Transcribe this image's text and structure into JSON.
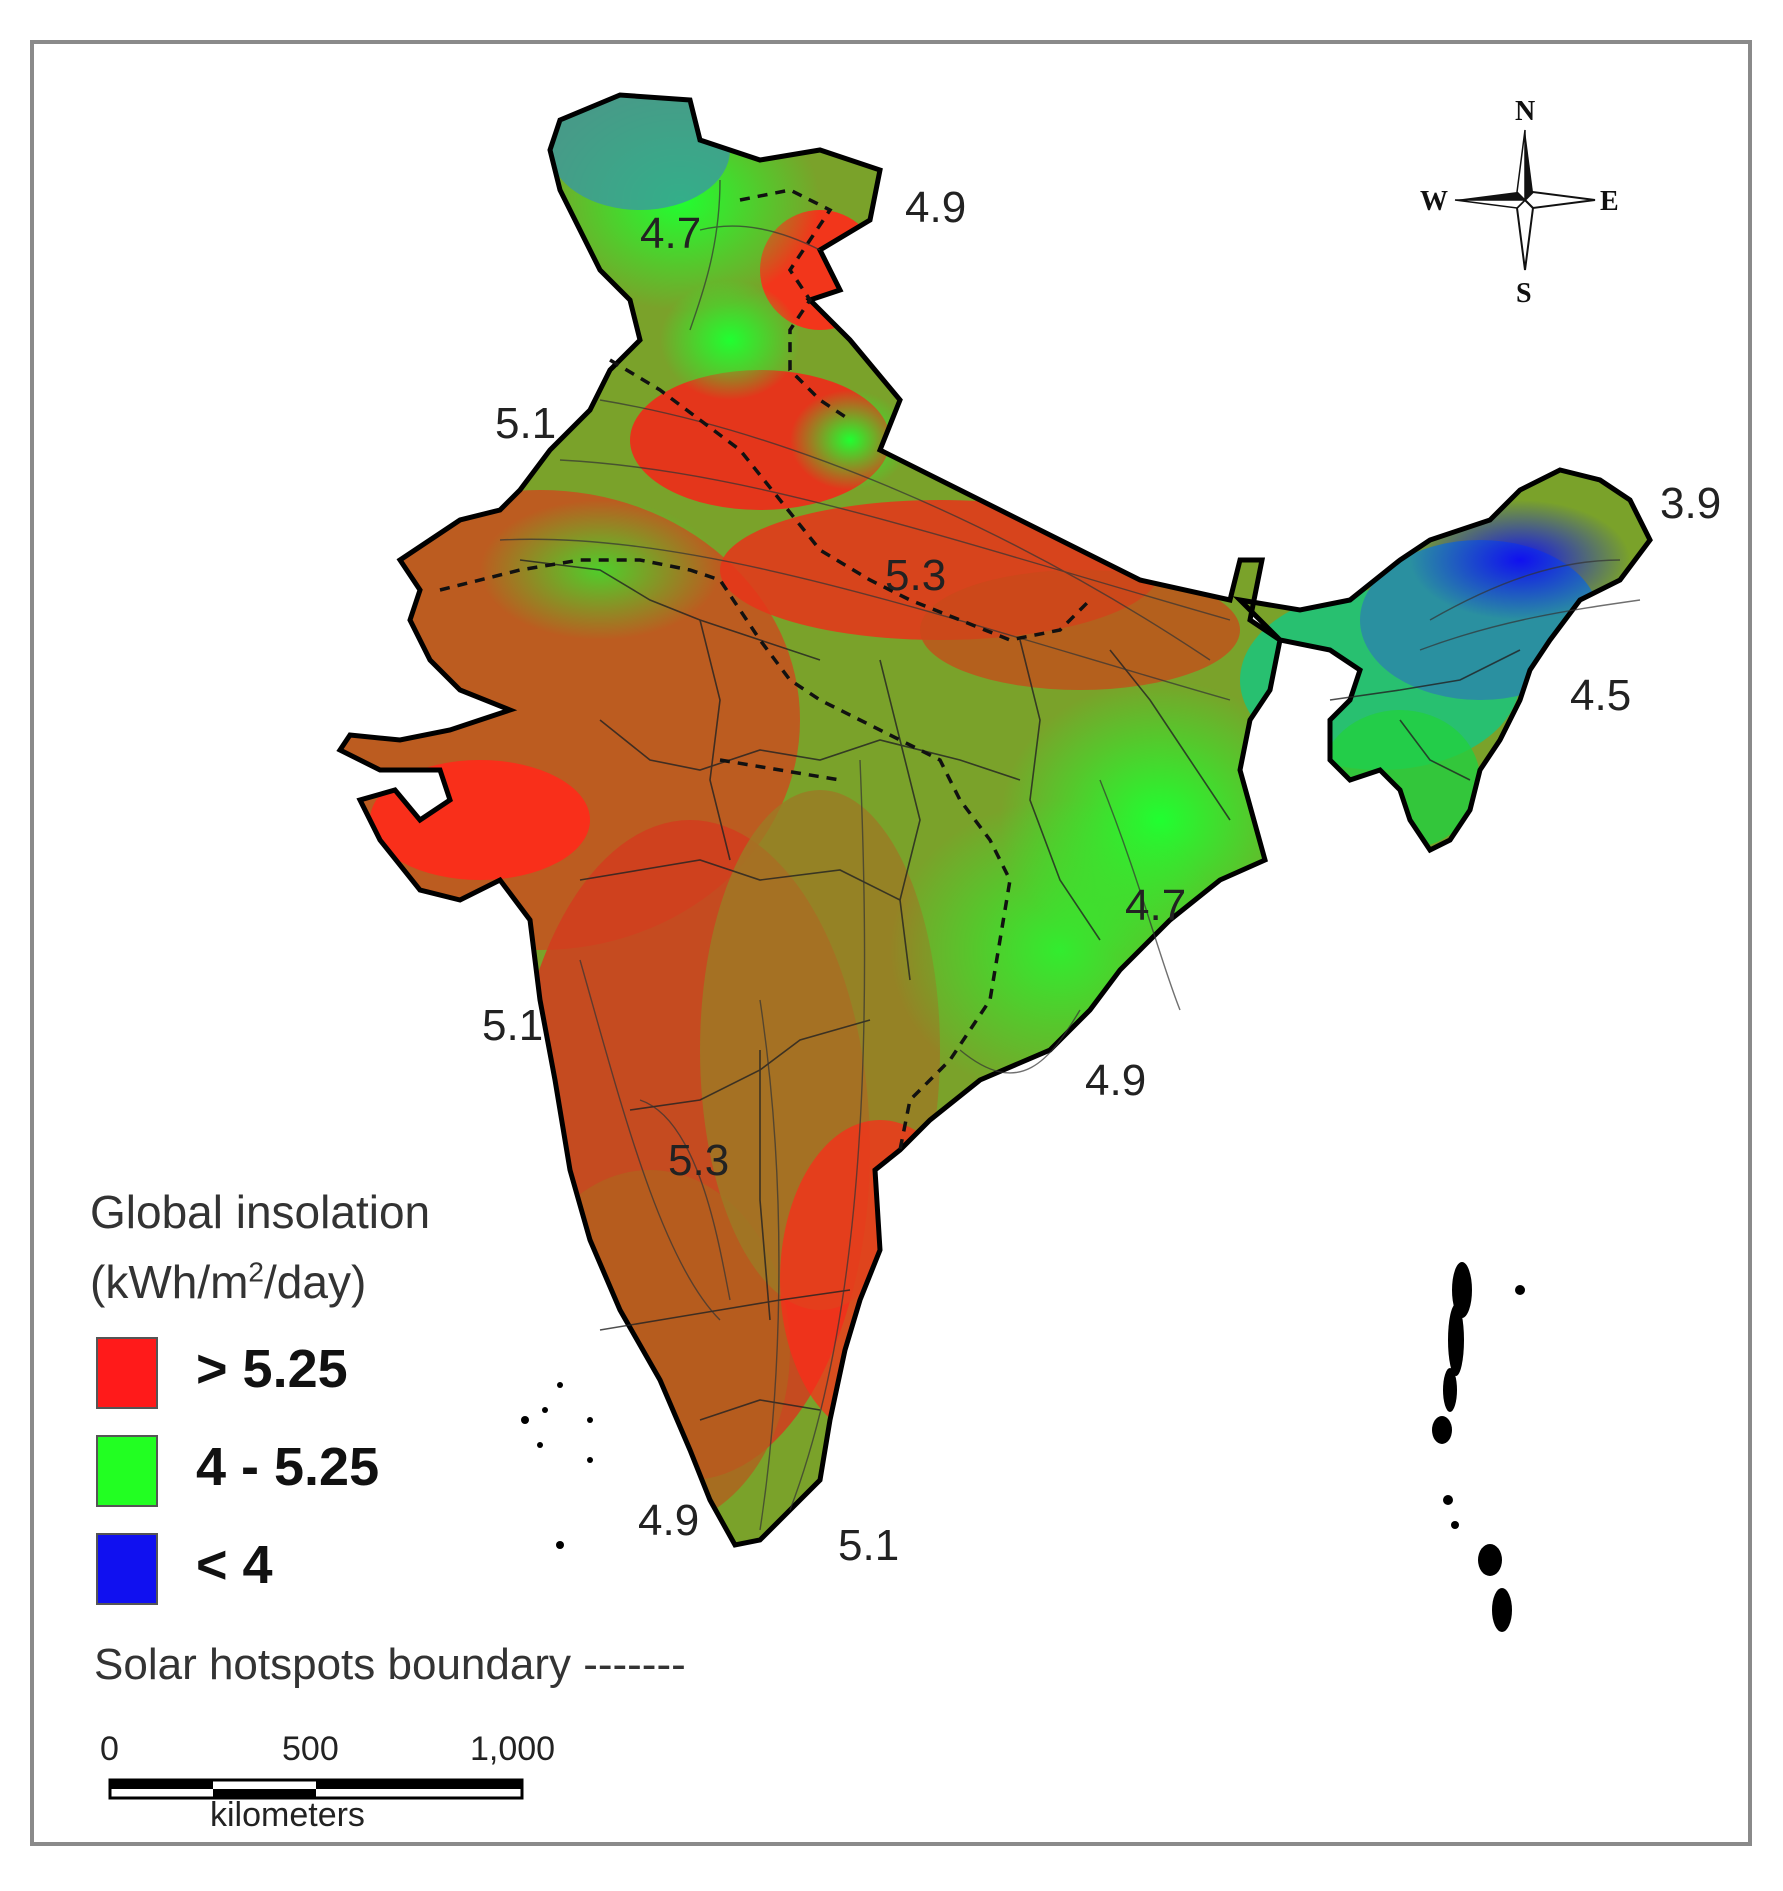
{
  "contour_labels": [
    "4.7",
    "4.9",
    "5.1",
    "5.3",
    "3.9",
    "4.5",
    "4.7",
    "5.1",
    "4.9",
    "5.3",
    "4.9",
    "5.1"
  ],
  "compass": {
    "north": "N",
    "south": "S",
    "east": "E",
    "west": "W"
  },
  "legend": {
    "title_line1": "Global insolation",
    "title_line2_prefix": "(kWh/m",
    "title_sup": "2",
    "title_line2_suffix": "/day)",
    "items": [
      {
        "label": "> 5.25",
        "color": "#ff1a1a"
      },
      {
        "label": "4 - 5.25",
        "color": "#22ff22"
      },
      {
        "label": "< 4",
        "color": "#1010f0"
      }
    ],
    "boundary_note": "Solar hotspots boundary -------"
  },
  "scale_bar": {
    "ticks": [
      "0",
      "500",
      "1,000"
    ],
    "unit": "kilometers"
  }
}
